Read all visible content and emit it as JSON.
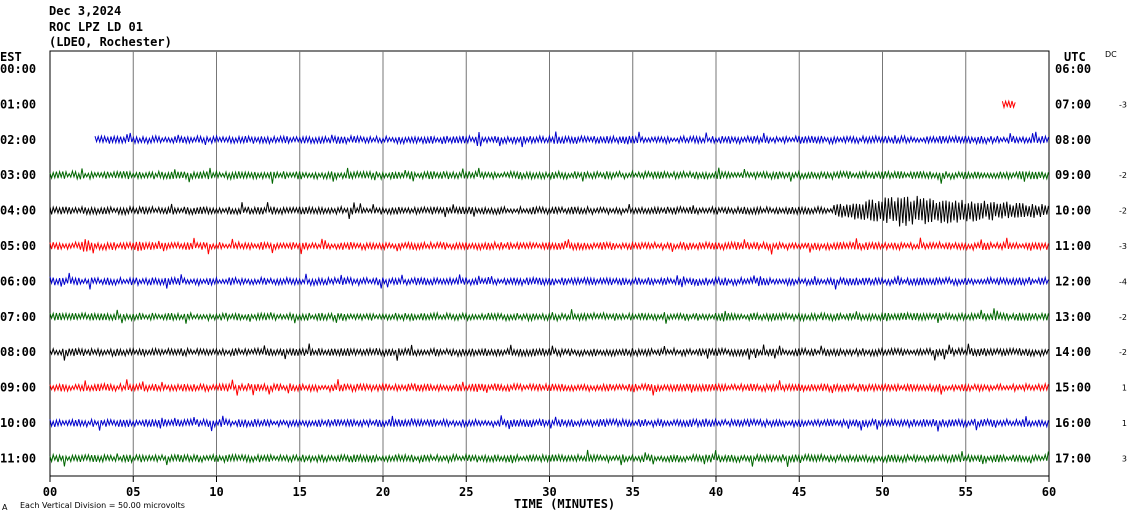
{
  "header": {
    "date": "Dec 3,2024",
    "station": "ROC LPZ LD 01",
    "network": "(LDEO, Rochester)"
  },
  "left_axis_title": "EST",
  "right_axis_title": "UTC",
  "dc_title": "DC",
  "footer": {
    "x_axis_title": "TIME (MINUTES)",
    "scale_note": "Each Vertical Division =   50.00 microvolts",
    "corner_mark": "A"
  },
  "chart_data": {
    "type": "line",
    "title": "ROC LPZ LD 01",
    "xlabel": "TIME (MINUTES)",
    "xlim": [
      0,
      60
    ],
    "x_ticks": [
      "00",
      "05",
      "10",
      "15",
      "20",
      "25",
      "30",
      "35",
      "40",
      "45",
      "50",
      "55",
      "60"
    ],
    "grid": true,
    "rows": [
      {
        "est": "00:00",
        "utc": "06:00",
        "dc": "",
        "color": "none",
        "start_min": 0,
        "end_min": 0,
        "amplitude": 0
      },
      {
        "est": "01:00",
        "utc": "07:00",
        "dc": "-3",
        "color": "#ff0000",
        "start_min": 57.2,
        "end_min": 58.0,
        "amplitude": 3
      },
      {
        "est": "02:00",
        "utc": "08:00",
        "dc": "",
        "color": "#0000cc",
        "start_min": 2.7,
        "end_min": 60,
        "amplitude": 3
      },
      {
        "est": "03:00",
        "utc": "09:00",
        "dc": "-2",
        "color": "#006600",
        "start_min": 0,
        "end_min": 60,
        "amplitude": 3
      },
      {
        "est": "04:00",
        "utc": "10:00",
        "dc": "-2",
        "color": "#000000",
        "start_min": 0,
        "end_min": 60,
        "amplitude": 3,
        "event": {
          "start_min": 47,
          "peak_min": 51,
          "end_min": 60,
          "amplitude": 16
        }
      },
      {
        "est": "05:00",
        "utc": "11:00",
        "dc": "-3",
        "color": "#ff0000",
        "start_min": 0,
        "end_min": 60,
        "amplitude": 3,
        "bursts": [
          {
            "min": 2.2,
            "amplitude": 8
          },
          {
            "min": 5.3,
            "amplitude": 7
          }
        ]
      },
      {
        "est": "06:00",
        "utc": "12:00",
        "dc": "-4",
        "color": "#0000cc",
        "start_min": 0,
        "end_min": 60,
        "amplitude": 3
      },
      {
        "est": "07:00",
        "utc": "13:00",
        "dc": "-2",
        "color": "#006600",
        "start_min": 0,
        "end_min": 60,
        "amplitude": 3
      },
      {
        "est": "08:00",
        "utc": "14:00",
        "dc": "-2",
        "color": "#000000",
        "start_min": 0,
        "end_min": 60,
        "amplitude": 3
      },
      {
        "est": "09:00",
        "utc": "15:00",
        "dc": "1",
        "color": "#ff0000",
        "start_min": 0,
        "end_min": 60,
        "amplitude": 3
      },
      {
        "est": "10:00",
        "utc": "16:00",
        "dc": "1",
        "color": "#0000cc",
        "start_min": 0,
        "end_min": 60,
        "amplitude": 3
      },
      {
        "est": "11:00",
        "utc": "17:00",
        "dc": "3",
        "color": "#006600",
        "start_min": 0,
        "end_min": 60,
        "amplitude": 3
      }
    ]
  }
}
